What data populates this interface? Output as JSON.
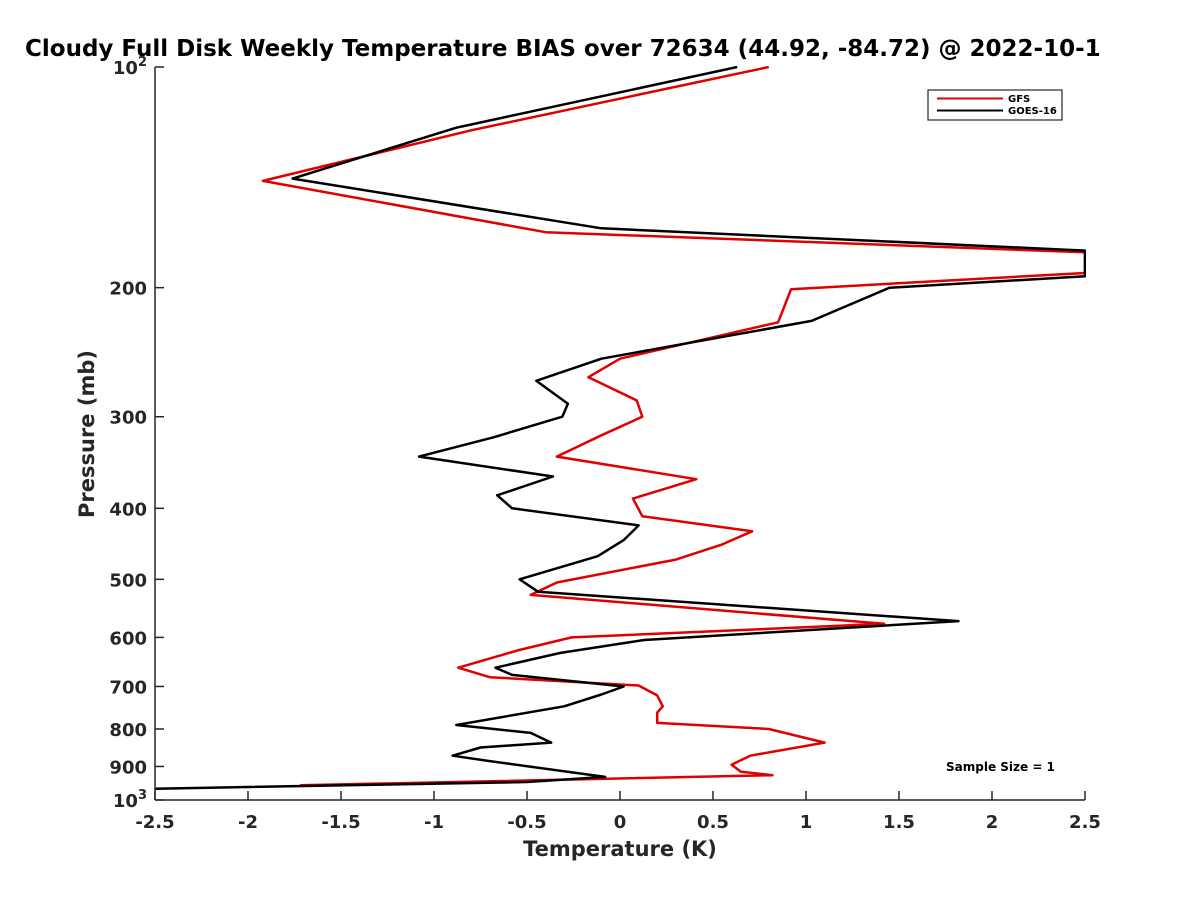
{
  "chart_data": {
    "type": "line",
    "title": "Cloudy Full Disk Weekly Temperature BIAS over 72634 (44.92, -84.72) @ 2022-10-1",
    "xlabel": "Temperature (K)",
    "ylabel": "Pressure (mb)",
    "xlim": [
      -2.5,
      2.5
    ],
    "ylim": [
      100,
      1000
    ],
    "yscale": "log",
    "y_reversed": true,
    "x_ticks": [
      "-2.5",
      "-2",
      "-1.5",
      "-1",
      "-0.5",
      "0",
      "0.5",
      "1",
      "1.5",
      "2",
      "2.5"
    ],
    "y_ticks": [
      {
        "base": "10",
        "exp": "2",
        "value": 100
      },
      {
        "label": "200",
        "value": 200
      },
      {
        "label": "300",
        "value": 300
      },
      {
        "label": "400",
        "value": 400
      },
      {
        "label": "500",
        "value": 500
      },
      {
        "label": "600",
        "value": 600
      },
      {
        "label": "700",
        "value": 700
      },
      {
        "label": "800",
        "value": 800
      },
      {
        "label": "900",
        "value": 900
      },
      {
        "base": "10",
        "exp": "3",
        "value": 1000
      }
    ],
    "legend_position": "top-right",
    "annotation": "Sample Size = 1",
    "series": [
      {
        "name": "GFS",
        "color": "#e00000",
        "points": [
          {
            "x": 0.8,
            "y": 100
          },
          {
            "x": -0.8,
            "y": 122
          },
          {
            "x": -1.92,
            "y": 143
          },
          {
            "x": -0.4,
            "y": 168
          },
          {
            "x": 2.5,
            "y": 179
          },
          {
            "x": 2.5,
            "y": 191
          },
          {
            "x": 0.92,
            "y": 201
          },
          {
            "x": 0.85,
            "y": 223
          },
          {
            "x": 0.0,
            "y": 250
          },
          {
            "x": -0.17,
            "y": 265
          },
          {
            "x": 0.09,
            "y": 285
          },
          {
            "x": 0.12,
            "y": 300
          },
          {
            "x": -0.1,
            "y": 318
          },
          {
            "x": -0.34,
            "y": 340
          },
          {
            "x": 0.41,
            "y": 365
          },
          {
            "x": 0.07,
            "y": 388
          },
          {
            "x": 0.12,
            "y": 410
          },
          {
            "x": 0.71,
            "y": 430
          },
          {
            "x": 0.55,
            "y": 448
          },
          {
            "x": 0.3,
            "y": 470
          },
          {
            "x": -0.34,
            "y": 505
          },
          {
            "x": -0.48,
            "y": 525
          },
          {
            "x": 1.42,
            "y": 575
          },
          {
            "x": -0.26,
            "y": 600
          },
          {
            "x": -0.55,
            "y": 625
          },
          {
            "x": -0.87,
            "y": 660
          },
          {
            "x": -0.7,
            "y": 680
          },
          {
            "x": 0.1,
            "y": 698
          },
          {
            "x": 0.2,
            "y": 720
          },
          {
            "x": 0.23,
            "y": 745
          },
          {
            "x": 0.2,
            "y": 760
          },
          {
            "x": 0.2,
            "y": 785
          },
          {
            "x": 0.8,
            "y": 800
          },
          {
            "x": 1.1,
            "y": 835
          },
          {
            "x": 0.7,
            "y": 870
          },
          {
            "x": 0.6,
            "y": 895
          },
          {
            "x": 0.65,
            "y": 915
          },
          {
            "x": 0.82,
            "y": 925
          },
          {
            "x": -1.72,
            "y": 955
          }
        ]
      },
      {
        "name": "GOES-16",
        "color": "#000000",
        "points": [
          {
            "x": 0.63,
            "y": 100
          },
          {
            "x": -0.88,
            "y": 121
          },
          {
            "x": -1.76,
            "y": 142
          },
          {
            "x": -0.1,
            "y": 166
          },
          {
            "x": 2.5,
            "y": 178
          },
          {
            "x": 2.5,
            "y": 193
          },
          {
            "x": 1.45,
            "y": 200
          },
          {
            "x": 1.03,
            "y": 222
          },
          {
            "x": -0.1,
            "y": 250
          },
          {
            "x": -0.45,
            "y": 268
          },
          {
            "x": -0.28,
            "y": 288
          },
          {
            "x": -0.31,
            "y": 300
          },
          {
            "x": -0.68,
            "y": 320
          },
          {
            "x": -1.08,
            "y": 340
          },
          {
            "x": -0.36,
            "y": 362
          },
          {
            "x": -0.66,
            "y": 384
          },
          {
            "x": -0.58,
            "y": 400
          },
          {
            "x": 0.1,
            "y": 422
          },
          {
            "x": 0.02,
            "y": 442
          },
          {
            "x": -0.12,
            "y": 465
          },
          {
            "x": -0.54,
            "y": 500
          },
          {
            "x": -0.44,
            "y": 520
          },
          {
            "x": 1.82,
            "y": 570
          },
          {
            "x": 0.13,
            "y": 605
          },
          {
            "x": -0.32,
            "y": 630
          },
          {
            "x": -0.67,
            "y": 660
          },
          {
            "x": -0.58,
            "y": 675
          },
          {
            "x": 0.02,
            "y": 700
          },
          {
            "x": -0.1,
            "y": 718
          },
          {
            "x": -0.3,
            "y": 745
          },
          {
            "x": -0.88,
            "y": 790
          },
          {
            "x": -0.48,
            "y": 810
          },
          {
            "x": -0.37,
            "y": 835
          },
          {
            "x": -0.75,
            "y": 848
          },
          {
            "x": -0.9,
            "y": 870
          },
          {
            "x": -0.7,
            "y": 885
          },
          {
            "x": -0.08,
            "y": 930
          },
          {
            "x": -0.5,
            "y": 945
          },
          {
            "x": -2.5,
            "y": 965
          }
        ]
      }
    ]
  }
}
